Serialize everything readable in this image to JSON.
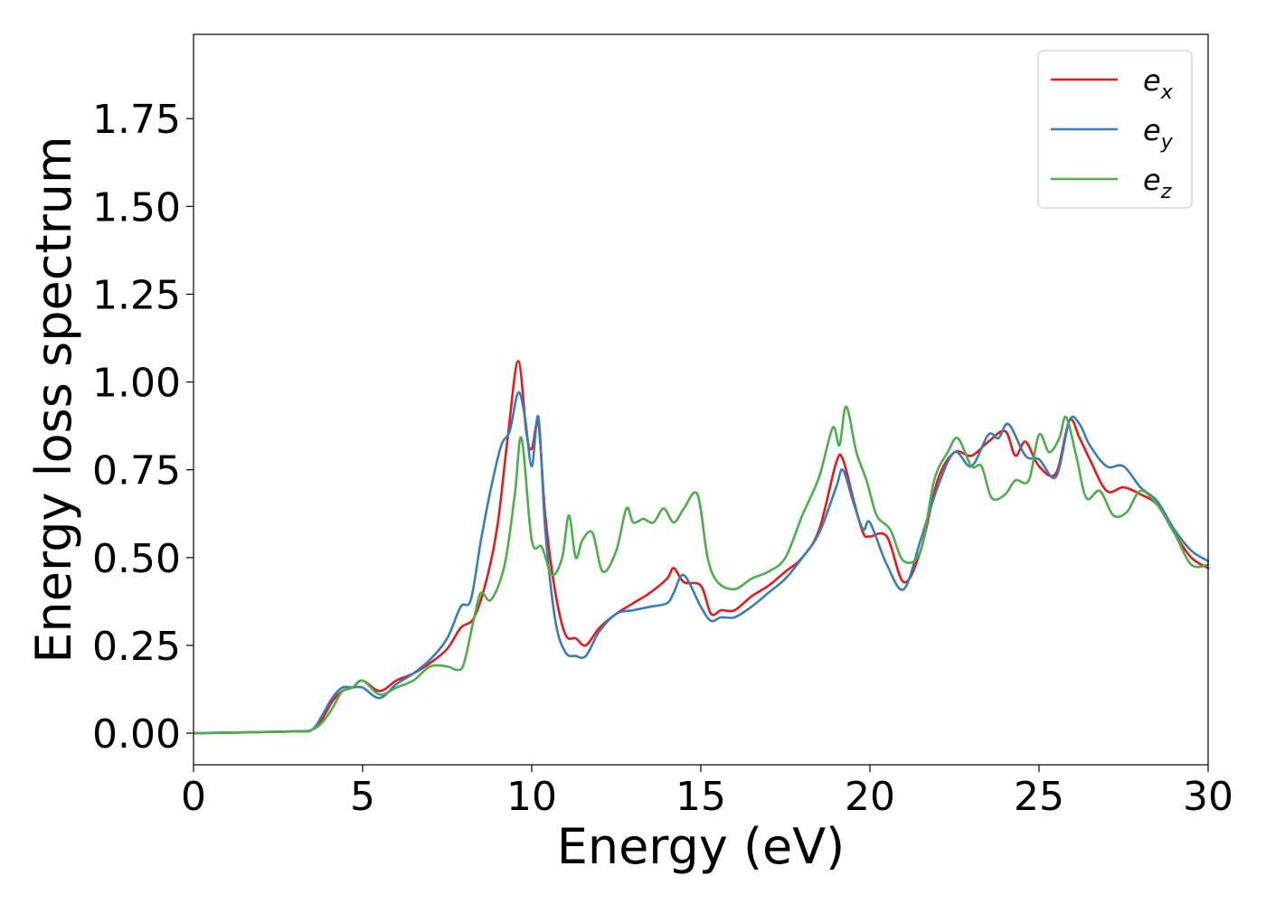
{
  "chart_data": {
    "type": "line",
    "xlabel": "Energy (eV)",
    "ylabel": "Energy loss spectrum",
    "xlim": [
      0,
      30
    ],
    "ylim": [
      -0.09,
      1.99
    ],
    "xticks": [
      0,
      5,
      10,
      15,
      20,
      25,
      30
    ],
    "yticks": [
      0.0,
      0.25,
      0.5,
      0.75,
      1.0,
      1.25,
      1.5,
      1.75
    ],
    "xtick_labels": [
      "0",
      "5",
      "10",
      "15",
      "20",
      "25",
      "30"
    ],
    "ytick_labels": [
      "0.00",
      "0.25",
      "0.50",
      "0.75",
      "1.00",
      "1.25",
      "1.50",
      "1.75"
    ],
    "grid": false,
    "legend_position": "top-right",
    "series": [
      {
        "name": "e_x",
        "label_base": "e",
        "label_sub": "x",
        "color": "#e41a1c",
        "x": [
          0,
          3.0,
          3.5,
          3.8,
          4.1,
          4.4,
          4.7,
          5.0,
          5.5,
          6.0,
          6.5,
          7.0,
          7.5,
          7.9,
          8.3,
          8.7,
          9.0,
          9.3,
          9.6,
          9.85,
          10.0,
          10.2,
          10.4,
          10.7,
          11.0,
          11.3,
          11.6,
          12.0,
          12.5,
          13.0,
          13.5,
          14.0,
          14.2,
          14.5,
          15.0,
          15.3,
          15.6,
          16.0,
          16.5,
          17.0,
          17.5,
          18.0,
          18.5,
          19.0,
          19.2,
          19.5,
          19.8,
          20.0,
          20.5,
          21.0,
          21.5,
          22.0,
          22.5,
          23.0,
          23.5,
          24.0,
          24.3,
          24.6,
          25.0,
          25.5,
          25.9,
          26.2,
          26.5,
          27.0,
          27.5,
          28.0,
          28.5,
          29.0,
          29.5,
          30.0
        ],
        "y": [
          0.0,
          0.005,
          0.01,
          0.04,
          0.09,
          0.12,
          0.13,
          0.15,
          0.12,
          0.15,
          0.17,
          0.2,
          0.24,
          0.3,
          0.33,
          0.45,
          0.6,
          0.85,
          1.06,
          0.85,
          0.81,
          0.88,
          0.62,
          0.4,
          0.28,
          0.27,
          0.25,
          0.3,
          0.34,
          0.37,
          0.4,
          0.44,
          0.47,
          0.43,
          0.42,
          0.34,
          0.35,
          0.35,
          0.39,
          0.42,
          0.46,
          0.5,
          0.58,
          0.77,
          0.78,
          0.67,
          0.57,
          0.56,
          0.56,
          0.43,
          0.52,
          0.72,
          0.8,
          0.79,
          0.83,
          0.86,
          0.79,
          0.83,
          0.76,
          0.74,
          0.89,
          0.84,
          0.78,
          0.69,
          0.7,
          0.68,
          0.65,
          0.57,
          0.5,
          0.47
        ]
      },
      {
        "name": "e_y",
        "label_base": "e",
        "label_sub": "y",
        "color": "#377eb8",
        "x": [
          0,
          3.0,
          3.5,
          3.8,
          4.1,
          4.4,
          4.7,
          5.0,
          5.5,
          6.0,
          6.5,
          7.0,
          7.5,
          7.9,
          8.2,
          8.5,
          8.8,
          9.1,
          9.35,
          9.6,
          9.8,
          10.0,
          10.2,
          10.4,
          10.7,
          11.0,
          11.3,
          11.6,
          12.0,
          12.5,
          13.0,
          13.5,
          14.0,
          14.2,
          14.5,
          15.0,
          15.3,
          15.6,
          16.0,
          16.5,
          17.0,
          17.5,
          18.0,
          18.5,
          19.0,
          19.2,
          19.5,
          19.8,
          20.0,
          20.5,
          21.0,
          21.5,
          22.0,
          22.5,
          23.0,
          23.5,
          23.8,
          24.1,
          24.6,
          25.0,
          25.5,
          25.9,
          26.2,
          26.5,
          27.0,
          27.5,
          28.0,
          28.5,
          29.0,
          29.5,
          30.0
        ],
        "y": [
          0.0,
          0.005,
          0.01,
          0.05,
          0.1,
          0.13,
          0.13,
          0.13,
          0.1,
          0.14,
          0.17,
          0.21,
          0.27,
          0.36,
          0.38,
          0.55,
          0.7,
          0.82,
          0.86,
          0.97,
          0.9,
          0.76,
          0.9,
          0.58,
          0.32,
          0.23,
          0.22,
          0.22,
          0.29,
          0.34,
          0.35,
          0.36,
          0.37,
          0.4,
          0.45,
          0.36,
          0.32,
          0.33,
          0.33,
          0.36,
          0.4,
          0.44,
          0.5,
          0.57,
          0.7,
          0.75,
          0.66,
          0.58,
          0.6,
          0.48,
          0.41,
          0.55,
          0.7,
          0.8,
          0.76,
          0.85,
          0.84,
          0.88,
          0.79,
          0.78,
          0.73,
          0.89,
          0.88,
          0.82,
          0.76,
          0.76,
          0.7,
          0.66,
          0.58,
          0.52,
          0.49
        ]
      },
      {
        "name": "e_z",
        "label_base": "e",
        "label_sub": "z",
        "color": "#4daf4a",
        "x": [
          0,
          3.0,
          3.5,
          3.8,
          4.1,
          4.4,
          4.7,
          5.0,
          5.5,
          6.0,
          6.5,
          7.0,
          7.5,
          7.8,
          8.0,
          8.3,
          8.5,
          8.8,
          9.2,
          9.5,
          9.7,
          10.0,
          10.3,
          10.6,
          10.9,
          11.1,
          11.3,
          11.5,
          11.8,
          12.1,
          12.5,
          12.8,
          13.0,
          13.3,
          13.6,
          13.9,
          14.2,
          14.5,
          14.9,
          15.2,
          15.5,
          16.0,
          16.5,
          17.0,
          17.5,
          18.0,
          18.5,
          18.9,
          19.1,
          19.3,
          19.6,
          19.9,
          20.2,
          20.6,
          21.0,
          21.5,
          21.9,
          22.3,
          22.6,
          23.0,
          23.3,
          23.6,
          24.0,
          24.3,
          24.7,
          25.0,
          25.3,
          25.6,
          25.8,
          26.1,
          26.4,
          26.8,
          27.2,
          27.6,
          28.0,
          28.5,
          29.0,
          29.5,
          30.0
        ],
        "y": [
          0.0,
          0.005,
          0.01,
          0.03,
          0.07,
          0.12,
          0.13,
          0.15,
          0.11,
          0.13,
          0.15,
          0.19,
          0.19,
          0.18,
          0.2,
          0.33,
          0.4,
          0.38,
          0.48,
          0.68,
          0.84,
          0.55,
          0.53,
          0.45,
          0.5,
          0.62,
          0.5,
          0.55,
          0.57,
          0.46,
          0.52,
          0.64,
          0.6,
          0.61,
          0.6,
          0.64,
          0.6,
          0.64,
          0.68,
          0.5,
          0.43,
          0.41,
          0.44,
          0.46,
          0.5,
          0.62,
          0.73,
          0.87,
          0.82,
          0.93,
          0.8,
          0.72,
          0.62,
          0.58,
          0.49,
          0.52,
          0.72,
          0.8,
          0.84,
          0.76,
          0.76,
          0.67,
          0.68,
          0.72,
          0.72,
          0.85,
          0.8,
          0.84,
          0.9,
          0.79,
          0.67,
          0.69,
          0.62,
          0.63,
          0.69,
          0.65,
          0.57,
          0.48,
          0.48
        ]
      }
    ]
  }
}
